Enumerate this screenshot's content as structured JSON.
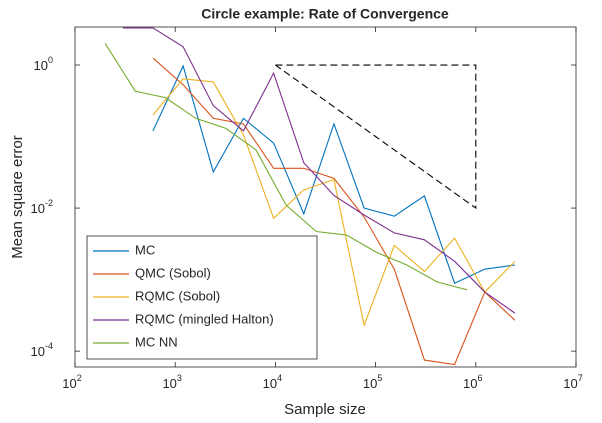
{
  "chart_data": {
    "type": "line",
    "title": "Circle example: Rate of Convergence",
    "x_label": "Sample size",
    "y_label": "Mean square error",
    "log_x": true,
    "log_y": true,
    "grid": false,
    "legend_position": "lower-left",
    "xlim": [
      100,
      10000000
    ],
    "ylim": [
      6e-05,
      3.4
    ],
    "xticks": [
      {
        "value": 100,
        "label": "10",
        "exponent": "2"
      },
      {
        "value": 1000,
        "label": "10",
        "exponent": "3"
      },
      {
        "value": 10000,
        "label": "10",
        "exponent": "4"
      },
      {
        "value": 100000,
        "label": "10",
        "exponent": "5"
      },
      {
        "value": 1000000,
        "label": "10",
        "exponent": "6"
      },
      {
        "value": 10000000,
        "label": "10",
        "exponent": "7"
      }
    ],
    "yticks": [
      {
        "value": 0.0001,
        "label": "10",
        "exponent": "-4"
      },
      {
        "value": 0.01,
        "label": "10",
        "exponent": "-2"
      },
      {
        "value": 1,
        "label": "10",
        "exponent": "0"
      }
    ],
    "series": [
      {
        "name": "MC",
        "color": "#0072BD",
        "x": [
          600,
          1200,
          2400,
          4800,
          9600,
          19200,
          38400,
          76800,
          153600,
          307200,
          614400,
          1228800,
          2457600
        ],
        "values": [
          0.12,
          0.97,
          0.032,
          0.18,
          0.081,
          0.0083,
          0.15,
          0.01,
          0.0077,
          0.0148,
          0.00089,
          0.0014,
          0.0016
        ]
      },
      {
        "name": "QMC (Sobol)",
        "color": "#D95319",
        "x": [
          600,
          1200,
          2400,
          4800,
          9600,
          19200,
          38400,
          76800,
          153600,
          307200,
          614400,
          1228800,
          2457600
        ],
        "values": [
          1.25,
          0.53,
          0.18,
          0.15,
          0.036,
          0.036,
          0.026,
          0.0075,
          0.0014,
          7.5e-05,
          6.5e-05,
          0.00067,
          0.00027
        ]
      },
      {
        "name": "RQMC (Sobol)",
        "color": "#EDB120",
        "x": [
          600,
          1200,
          2400,
          4800,
          9600,
          19200,
          38400,
          76800,
          153600,
          307200,
          614400,
          1228800,
          2457600
        ],
        "values": [
          0.2,
          0.64,
          0.58,
          0.105,
          0.0072,
          0.018,
          0.025,
          0.00023,
          0.003,
          0.0013,
          0.0038,
          0.00067,
          0.0018
        ]
      },
      {
        "name": "RQMC (mingled Halton)",
        "color": "#7E2F8E",
        "x": [
          300,
          600,
          1200,
          2400,
          4800,
          9600,
          19200,
          38400,
          76800,
          153600,
          307200,
          614400,
          1228800,
          2457600
        ],
        "values": [
          3.3,
          3.3,
          1.8,
          0.27,
          0.12,
          0.77,
          0.043,
          0.015,
          0.008,
          0.0045,
          0.0036,
          0.0018,
          0.00067,
          0.00034
        ]
      },
      {
        "name": "MC NN",
        "color": "#77AC30",
        "x": [
          200,
          400,
          800,
          1600,
          3200,
          6400,
          12800,
          25600,
          51200,
          102400,
          204800,
          409600,
          819200
        ],
        "values": [
          2.0,
          0.43,
          0.35,
          0.18,
          0.13,
          0.065,
          0.011,
          0.0047,
          0.0042,
          0.0024,
          0.0016,
          0.00093,
          0.00072
        ]
      }
    ],
    "reference_triangle": {
      "x": [
        10000,
        1000000,
        1000000,
        10000
      ],
      "values": [
        1,
        1,
        0.01,
        1
      ]
    }
  }
}
